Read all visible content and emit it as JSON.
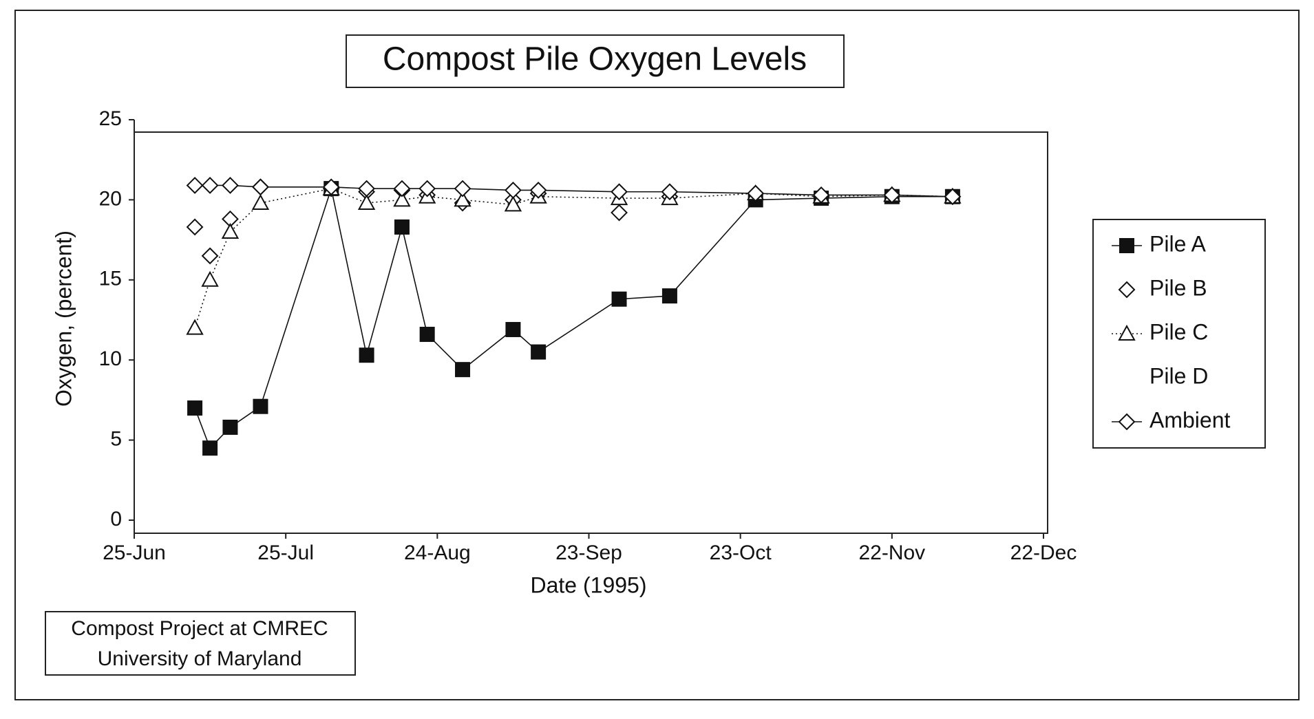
{
  "chart_data": {
    "type": "line",
    "title": "Compost Pile Oxygen Levels",
    "x_label": "Date (1995)",
    "y_label": "Oxygen, (percent)",
    "note": [
      "Compost Project at CMREC",
      "University of Maryland"
    ],
    "x": [
      "1995-07-07",
      "1995-07-10",
      "1995-07-14",
      "1995-07-20",
      "1995-08-03",
      "1995-08-10",
      "1995-08-17",
      "1995-08-22",
      "1995-08-29",
      "1995-09-08",
      "1995-09-13",
      "1995-09-29",
      "1995-10-09",
      "1995-10-26",
      "1995-11-08",
      "1995-11-22",
      "1995-12-04"
    ],
    "series": [
      {
        "name": "Pile A",
        "color": "#111111",
        "marker": "square-filled",
        "line": "solid",
        "values": [
          7.0,
          4.5,
          5.8,
          7.1,
          20.7,
          10.3,
          18.3,
          11.6,
          9.4,
          11.9,
          10.5,
          13.8,
          14.0,
          20.0,
          20.1,
          20.2,
          20.2
        ]
      },
      {
        "name": "Pile B",
        "color": "#111111",
        "marker": "diamond",
        "line": "none",
        "values": [
          18.3,
          16.5,
          18.8,
          20.8,
          20.7,
          20.5,
          20.6,
          20.3,
          19.8,
          20.0,
          20.4,
          19.2,
          20.2,
          20.4,
          20.2,
          20.3,
          20.2
        ]
      },
      {
        "name": "Pile C",
        "color": "#111111",
        "marker": "triangle",
        "line": "dotted",
        "values": [
          12.0,
          15.0,
          18.0,
          19.8,
          20.7,
          19.8,
          20.0,
          20.2,
          20.0,
          19.7,
          20.2,
          20.1,
          20.1,
          20.4,
          20.2,
          20.3,
          20.2
        ]
      },
      {
        "name": "Pile D",
        "color": "#111111",
        "marker": "none",
        "line": "none",
        "values": [
          null,
          null,
          null,
          null,
          null,
          null,
          null,
          null,
          null,
          null,
          null,
          null,
          null,
          null,
          null,
          null,
          null
        ]
      },
      {
        "name": "Ambient",
        "color": "#111111",
        "marker": "diamond",
        "line": "solid",
        "values": [
          20.9,
          20.9,
          20.9,
          20.8,
          20.8,
          20.7,
          20.7,
          20.7,
          20.7,
          20.6,
          20.6,
          20.5,
          20.5,
          20.4,
          20.3,
          20.3,
          20.2
        ]
      }
    ],
    "xlim": [
      "1995-06-25",
      "1995-12-22"
    ],
    "xticks": [
      {
        "value": "1995-06-25",
        "label": "25-Jun"
      },
      {
        "value": "1995-07-25",
        "label": "25-Jul"
      },
      {
        "value": "1995-08-24",
        "label": "24-Aug"
      },
      {
        "value": "1995-09-23",
        "label": "23-Sep"
      },
      {
        "value": "1995-10-23",
        "label": "23-Oct"
      },
      {
        "value": "1995-11-22",
        "label": "22-Nov"
      },
      {
        "value": "1995-12-22",
        "label": "22-Dec"
      }
    ],
    "ylim": [
      0,
      25
    ],
    "yticks": [
      0,
      5,
      10,
      15,
      20,
      25
    ],
    "grid": false,
    "legend": "right"
  }
}
